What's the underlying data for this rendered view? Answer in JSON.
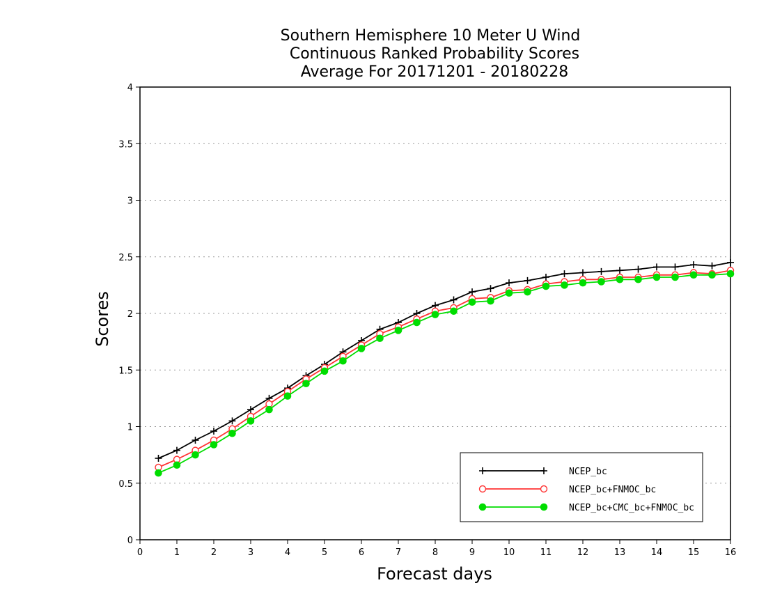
{
  "chart_data": {
    "type": "line",
    "title": [
      "Southern Hemisphere 10 Meter U Wind",
      "Continuous Ranked Probability Scores",
      "Average For 20171201 - 20180228"
    ],
    "xlabel": "Forecast days",
    "ylabel": "Scores",
    "xlim": [
      0,
      16
    ],
    "ylim": [
      0,
      4
    ],
    "xticks": [
      "0",
      "1",
      "2",
      "3",
      "4",
      "5",
      "6",
      "7",
      "8",
      "9",
      "10",
      "11",
      "12",
      "13",
      "14",
      "15",
      "16"
    ],
    "yticks": [
      "0",
      "0.5",
      "1",
      "1.5",
      "2",
      "2.5",
      "3",
      "3.5",
      "4"
    ],
    "grid": "horizontal dotted",
    "legend_position": "bottom-right",
    "x": [
      0.5,
      1,
      1.5,
      2,
      2.5,
      3,
      3.5,
      4,
      4.5,
      5,
      5.5,
      6,
      6.5,
      7,
      7.5,
      8,
      8.5,
      9,
      9.5,
      10,
      10.5,
      11,
      11.5,
      12,
      12.5,
      13,
      13.5,
      14,
      14.5,
      15,
      15.5,
      16
    ],
    "series": [
      {
        "name": "NCEP_bc",
        "color": "#000000",
        "marker": "plus-icon",
        "values": [
          0.72,
          0.79,
          0.88,
          0.96,
          1.05,
          1.15,
          1.25,
          1.34,
          1.45,
          1.55,
          1.66,
          1.76,
          1.86,
          1.92,
          2.0,
          2.07,
          2.12,
          2.19,
          2.22,
          2.27,
          2.29,
          2.32,
          2.35,
          2.36,
          2.37,
          2.38,
          2.39,
          2.41,
          2.41,
          2.43,
          2.42,
          2.45
        ]
      },
      {
        "name": "NCEP_bc+FNMOC_bc",
        "color": "#ff3333",
        "marker": "open-circle-icon",
        "values": [
          0.64,
          0.71,
          0.79,
          0.88,
          0.98,
          1.09,
          1.2,
          1.31,
          1.42,
          1.52,
          1.62,
          1.72,
          1.82,
          1.88,
          1.95,
          2.02,
          2.05,
          2.13,
          2.14,
          2.2,
          2.21,
          2.26,
          2.28,
          2.3,
          2.3,
          2.32,
          2.32,
          2.34,
          2.34,
          2.36,
          2.35,
          2.38
        ]
      },
      {
        "name": "NCEP_bc+CMC_bc+FNMOC_bc",
        "color": "#00dd00",
        "marker": "filled-circle-icon",
        "values": [
          0.59,
          0.66,
          0.75,
          0.84,
          0.94,
          1.05,
          1.15,
          1.27,
          1.38,
          1.49,
          1.58,
          1.69,
          1.78,
          1.85,
          1.92,
          1.99,
          2.02,
          2.1,
          2.11,
          2.18,
          2.19,
          2.24,
          2.25,
          2.27,
          2.28,
          2.3,
          2.3,
          2.32,
          2.32,
          2.34,
          2.34,
          2.35
        ]
      }
    ]
  }
}
